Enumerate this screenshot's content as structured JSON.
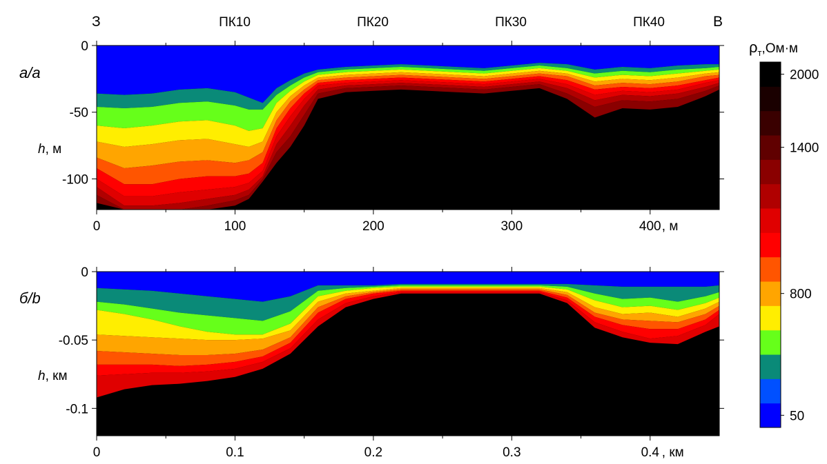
{
  "chart_data": [
    {
      "type": "heatmap",
      "panel_label": "а/a",
      "top_labels": [
        "З",
        "ПК10",
        "ПК20",
        "ПК30",
        "ПК40",
        "В"
      ],
      "ylabel": "h, м",
      "xlabel_unit": ", м",
      "xlim": [
        0,
        450
      ],
      "ylim": [
        -123,
        0
      ],
      "x_ticks": [
        "0",
        "100",
        "200",
        "300",
        "400"
      ],
      "y_ticks": [
        "0",
        "-50",
        "-100"
      ],
      "boundaries": {
        "x": [
          0,
          20,
          40,
          60,
          80,
          100,
          110,
          120,
          130,
          140,
          150,
          160,
          180,
          200,
          220,
          240,
          260,
          280,
          300,
          320,
          340,
          360,
          380,
          400,
          420,
          440,
          450
        ],
        "lines": [
          [
            -36,
            -37,
            -36,
            -33,
            -32,
            -35,
            -39,
            -43,
            -32,
            -26,
            -21,
            -18,
            -16,
            -15,
            -14,
            -15,
            -16,
            -17,
            -15,
            -13,
            -14,
            -18,
            -16,
            -17,
            -15,
            -14,
            -14
          ],
          [
            -46,
            -47,
            -46,
            -43,
            -42,
            -45,
            -48,
            -48,
            -37,
            -30,
            -24,
            -20,
            -18,
            -17,
            -16,
            -17,
            -18,
            -19,
            -17,
            -15,
            -17,
            -21,
            -19,
            -20,
            -18,
            -17,
            -16
          ],
          [
            -60,
            -62,
            -60,
            -57,
            -56,
            -60,
            -64,
            -62,
            -43,
            -34,
            -27,
            -22,
            -20,
            -19,
            -18,
            -19,
            -20,
            -21,
            -19,
            -17,
            -19,
            -24,
            -22,
            -23,
            -21,
            -19,
            -18
          ],
          [
            -72,
            -76,
            -74,
            -71,
            -70,
            -74,
            -76,
            -72,
            -50,
            -38,
            -30,
            -24,
            -22,
            -21,
            -20,
            -21,
            -22,
            -23,
            -21,
            -19,
            -21,
            -27,
            -25,
            -26,
            -24,
            -21,
            -20
          ],
          [
            -84,
            -92,
            -90,
            -87,
            -86,
            -88,
            -86,
            -80,
            -56,
            -42,
            -33,
            -26,
            -24,
            -23,
            -22,
            -23,
            -24,
            -25,
            -23,
            -21,
            -23,
            -30,
            -28,
            -29,
            -27,
            -23,
            -22
          ],
          [
            -92,
            -104,
            -104,
            -100,
            -98,
            -98,
            -96,
            -88,
            -62,
            -47,
            -36,
            -28,
            -26,
            -25,
            -24,
            -25,
            -26,
            -27,
            -25,
            -23,
            -26,
            -33,
            -31,
            -32,
            -30,
            -26,
            -24
          ],
          [
            -100,
            -113,
            -113,
            -110,
            -108,
            -106,
            -103,
            -94,
            -68,
            -53,
            -40,
            -30,
            -28,
            -27,
            -26,
            -27,
            -28,
            -29,
            -27,
            -25,
            -29,
            -37,
            -34,
            -35,
            -33,
            -28,
            -26
          ],
          [
            -106,
            -120,
            -120,
            -118,
            -115,
            -112,
            -108,
            -98,
            -74,
            -60,
            -45,
            -33,
            -30,
            -29,
            -28,
            -29,
            -30,
            -31,
            -29,
            -27,
            -32,
            -41,
            -37,
            -38,
            -36,
            -31,
            -28
          ],
          [
            -112,
            -123,
            -123,
            -123,
            -120,
            -116,
            -112,
            -100,
            -80,
            -68,
            -52,
            -36,
            -32,
            -31,
            -30,
            -31,
            -32,
            -33,
            -31,
            -29,
            -36,
            -46,
            -41,
            -42,
            -40,
            -34,
            -30
          ],
          [
            -118,
            -123,
            -123,
            -123,
            -123,
            -120,
            -115,
            -102,
            -88,
            -76,
            -60,
            -40,
            -35,
            -34,
            -33,
            -34,
            -35,
            -36,
            -34,
            -32,
            -40,
            -54,
            -47,
            -48,
            -46,
            -38,
            -33
          ]
        ]
      }
    },
    {
      "type": "heatmap",
      "panel_label": "б/b",
      "ylabel": "h, км",
      "xlabel_unit": ", км",
      "xlim": [
        0,
        0.45
      ],
      "ylim": [
        -0.12,
        0
      ],
      "x_ticks": [
        "0",
        "0.1",
        "0.2",
        "0.3",
        "0.4"
      ],
      "y_ticks": [
        "0",
        "-0.05",
        "-0.1"
      ],
      "boundaries": {
        "x": [
          0,
          0.02,
          0.04,
          0.06,
          0.08,
          0.1,
          0.12,
          0.14,
          0.16,
          0.18,
          0.2,
          0.22,
          0.24,
          0.26,
          0.28,
          0.3,
          0.32,
          0.34,
          0.36,
          0.38,
          0.4,
          0.42,
          0.44,
          0.45
        ],
        "lines": [
          [
            -0.012,
            -0.013,
            -0.014,
            -0.016,
            -0.018,
            -0.02,
            -0.022,
            -0.018,
            -0.01,
            -0.01,
            -0.01,
            -0.009,
            -0.009,
            -0.009,
            -0.009,
            -0.009,
            -0.009,
            -0.009,
            -0.01,
            -0.011,
            -0.011,
            -0.011,
            -0.011,
            -0.01
          ],
          [
            -0.022,
            -0.024,
            -0.027,
            -0.03,
            -0.032,
            -0.034,
            -0.036,
            -0.029,
            -0.014,
            -0.012,
            -0.011,
            -0.01,
            -0.01,
            -0.01,
            -0.01,
            -0.01,
            -0.01,
            -0.011,
            -0.016,
            -0.02,
            -0.019,
            -0.022,
            -0.018,
            -0.015
          ],
          [
            -0.028,
            -0.031,
            -0.035,
            -0.04,
            -0.044,
            -0.046,
            -0.046,
            -0.038,
            -0.018,
            -0.014,
            -0.012,
            -0.011,
            -0.011,
            -0.011,
            -0.011,
            -0.011,
            -0.011,
            -0.013,
            -0.021,
            -0.026,
            -0.025,
            -0.028,
            -0.023,
            -0.019
          ],
          [
            -0.046,
            -0.047,
            -0.048,
            -0.049,
            -0.05,
            -0.05,
            -0.049,
            -0.043,
            -0.022,
            -0.016,
            -0.014,
            -0.012,
            -0.012,
            -0.012,
            -0.012,
            -0.012,
            -0.012,
            -0.015,
            -0.026,
            -0.031,
            -0.03,
            -0.033,
            -0.027,
            -0.022
          ],
          [
            -0.058,
            -0.059,
            -0.06,
            -0.061,
            -0.061,
            -0.06,
            -0.057,
            -0.048,
            -0.026,
            -0.018,
            -0.015,
            -0.013,
            -0.013,
            -0.013,
            -0.013,
            -0.013,
            -0.013,
            -0.017,
            -0.03,
            -0.035,
            -0.036,
            -0.037,
            -0.031,
            -0.025
          ],
          [
            -0.068,
            -0.068,
            -0.068,
            -0.069,
            -0.068,
            -0.066,
            -0.062,
            -0.052,
            -0.03,
            -0.02,
            -0.016,
            -0.014,
            -0.014,
            -0.014,
            -0.014,
            -0.014,
            -0.014,
            -0.019,
            -0.033,
            -0.039,
            -0.042,
            -0.042,
            -0.035,
            -0.028
          ],
          [
            -0.076,
            -0.075,
            -0.074,
            -0.074,
            -0.073,
            -0.071,
            -0.066,
            -0.056,
            -0.035,
            -0.023,
            -0.018,
            -0.015,
            -0.015,
            -0.015,
            -0.015,
            -0.015,
            -0.015,
            -0.021,
            -0.037,
            -0.044,
            -0.049,
            -0.047,
            -0.039,
            -0.031
          ],
          [
            -0.092,
            -0.086,
            -0.083,
            -0.082,
            -0.08,
            -0.077,
            -0.071,
            -0.06,
            -0.04,
            -0.026,
            -0.02,
            -0.016,
            -0.016,
            -0.016,
            -0.016,
            -0.016,
            -0.016,
            -0.023,
            -0.041,
            -0.048,
            -0.052,
            -0.053,
            -0.044,
            -0.04
          ]
        ]
      }
    }
  ],
  "colorbar": {
    "title_rho": "ρ",
    "title_sub": "т",
    "title_unit": ",Ом·м",
    "tick_labels": [
      "2000",
      "1400",
      "800",
      "50"
    ],
    "tick_values": [
      2000,
      1400,
      800,
      50
    ],
    "bands": [
      "#0000ff",
      "#0050ff",
      "#0a8a78",
      "#66ff1a",
      "#ffee00",
      "#ffa500",
      "#ff5500",
      "#ff0000",
      "#e00000",
      "#b00000",
      "#8a0000",
      "#600000",
      "#3a0000",
      "#1a0000",
      "#000000"
    ]
  }
}
